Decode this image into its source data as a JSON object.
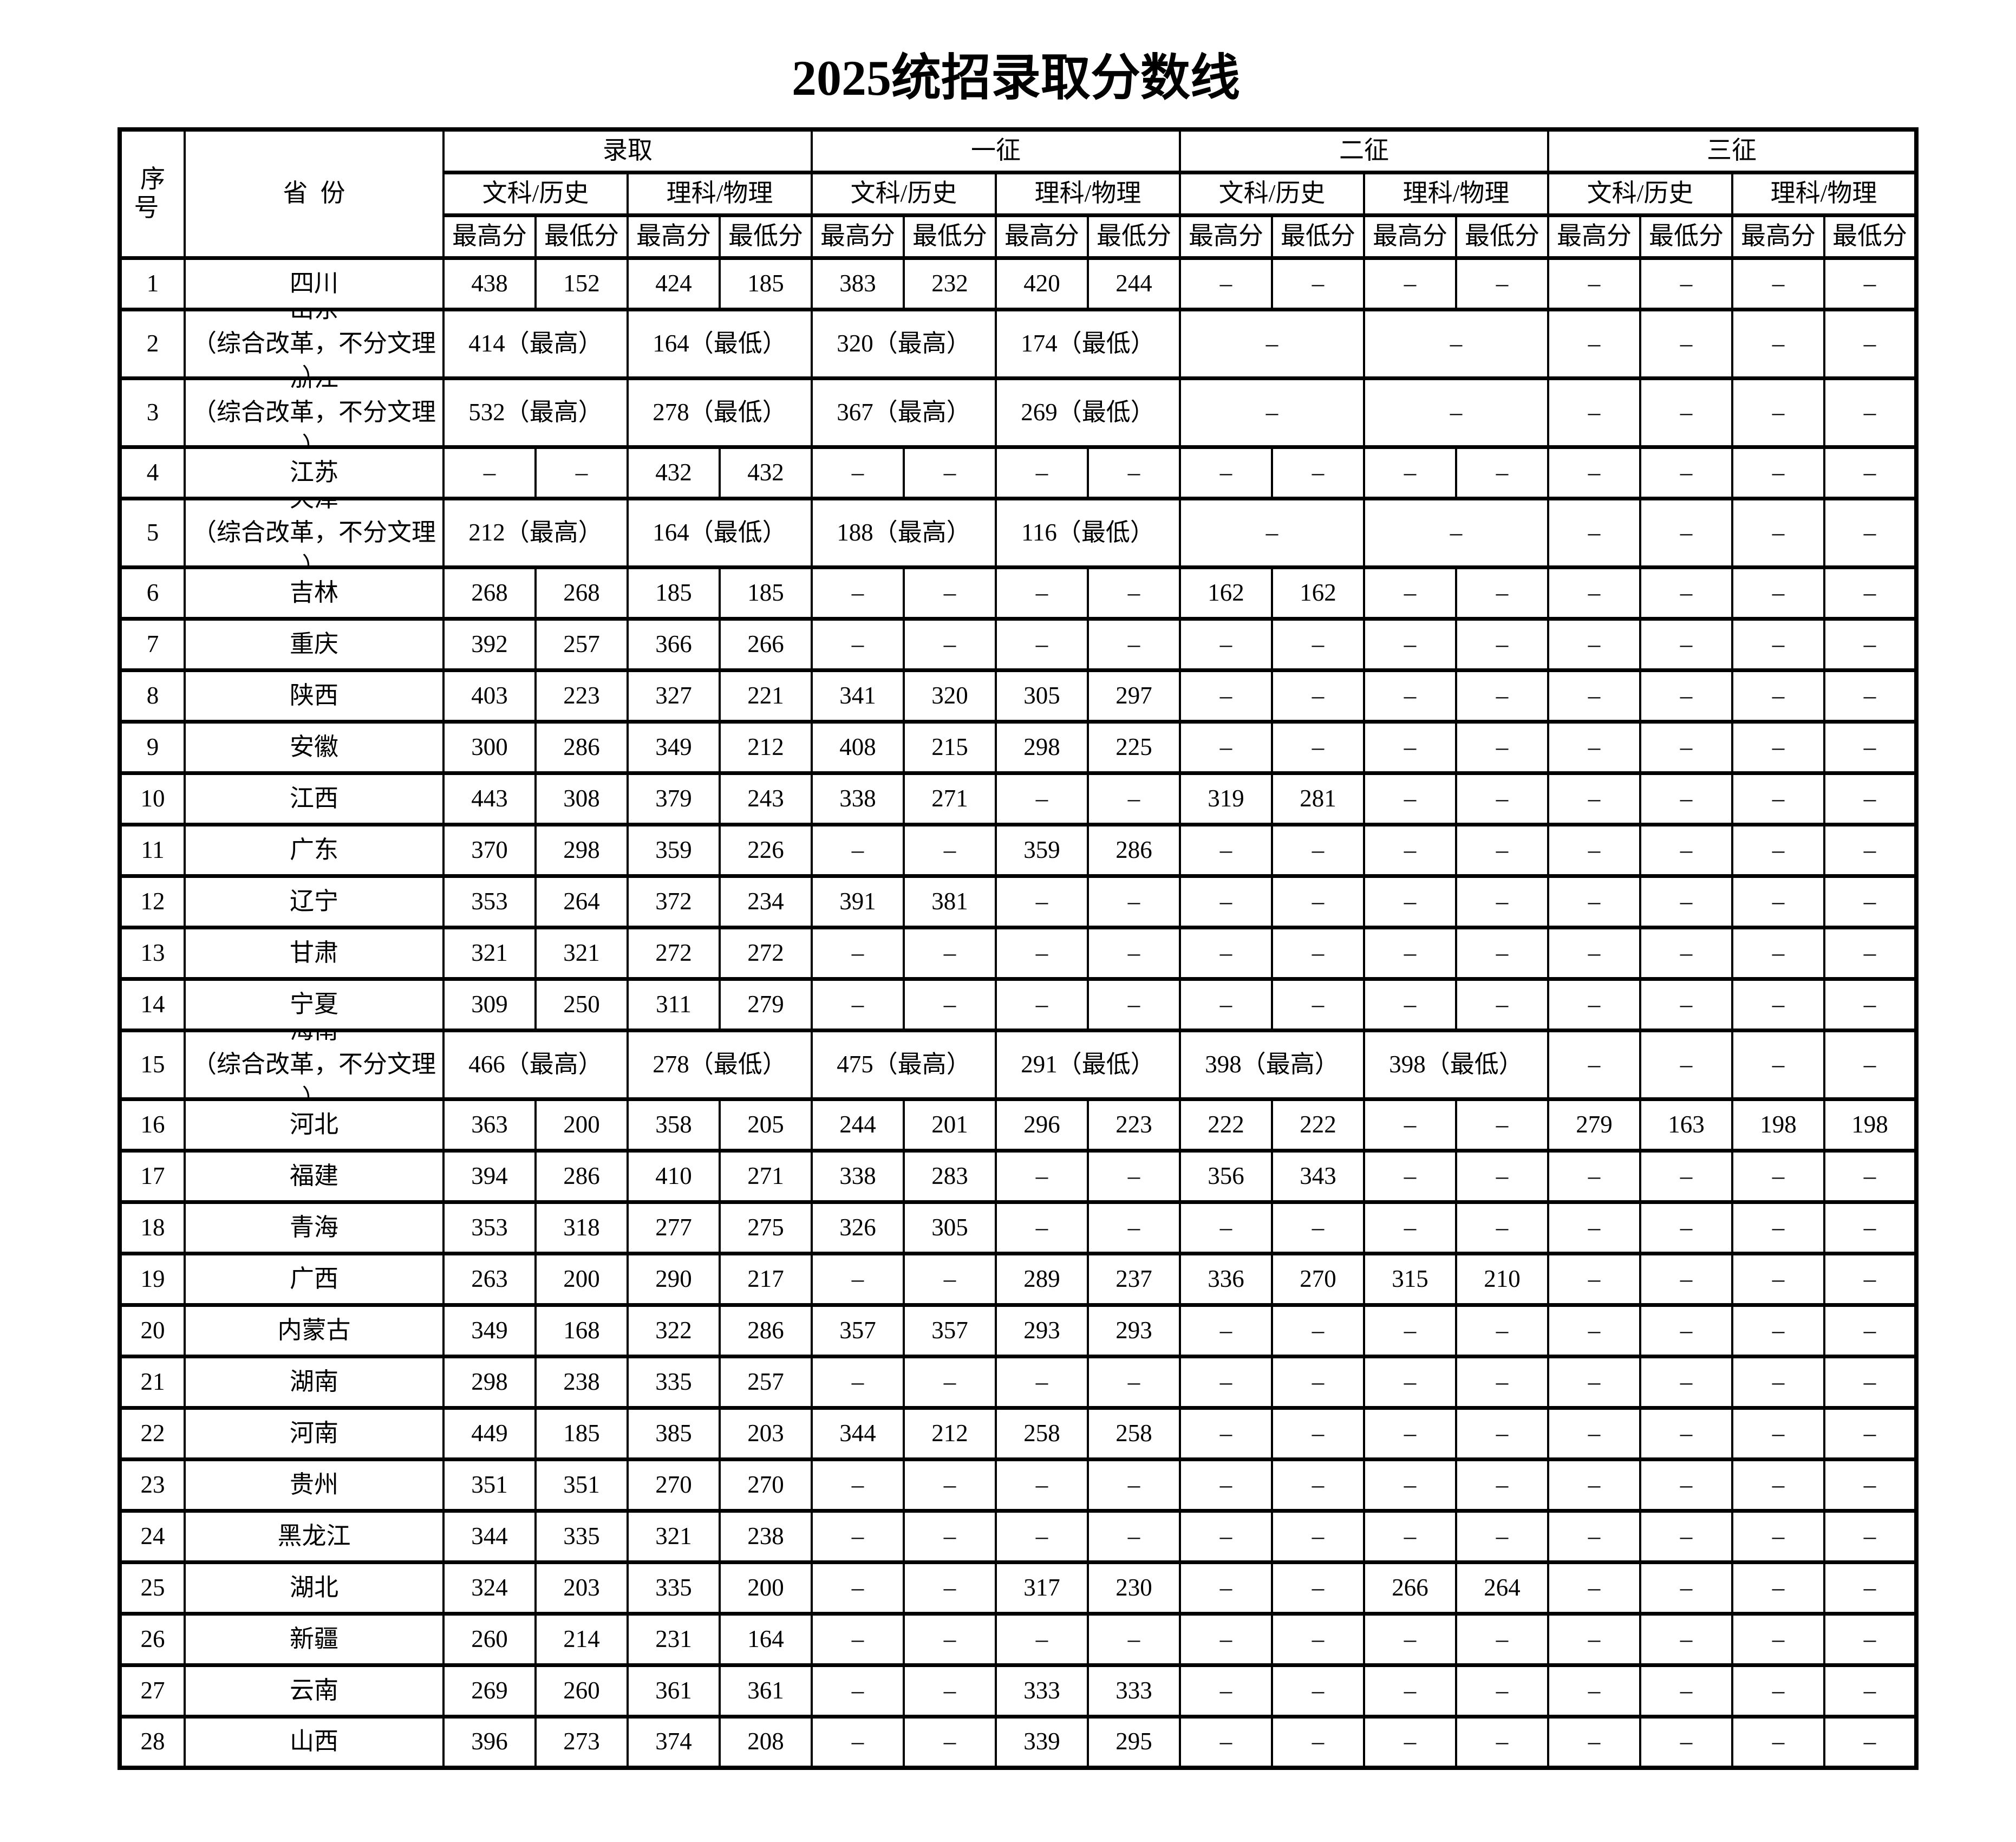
{
  "title": "2025统招录取分数线",
  "table": {
    "headers": {
      "seq": "序号",
      "province": "省份",
      "groups": [
        "录取",
        "一征",
        "二征",
        "三征"
      ],
      "subject_arts": "文科/历史",
      "subject_science": "理科/物理",
      "max": "最高分",
      "min": "最低分"
    },
    "dash": "–",
    "rows": [
      {
        "seq": "1",
        "province": "四川",
        "values": [
          "438",
          "152",
          "424",
          "185",
          "383",
          "232",
          "420",
          "244",
          "–",
          "–",
          "–",
          "–",
          "–",
          "–",
          "–",
          "–"
        ]
      },
      {
        "seq": "2",
        "province": [
          "山东",
          "（综合改革，不分文理",
          "）"
        ],
        "merged": [
          "414（最高）",
          "164（最低）",
          "320（最高）",
          "174（最低）",
          "–",
          "–"
        ],
        "tail": [
          "–",
          "–",
          "–",
          "–"
        ]
      },
      {
        "seq": "3",
        "province": [
          "浙江",
          "（综合改革，不分文理",
          "）"
        ],
        "merged": [
          "532（最高）",
          "278（最低）",
          "367（最高）",
          "269（最低）",
          "–",
          "–"
        ],
        "tail": [
          "–",
          "–",
          "–",
          "–"
        ]
      },
      {
        "seq": "4",
        "province": "江苏",
        "values": [
          "–",
          "–",
          "432",
          "432",
          "–",
          "–",
          "–",
          "–",
          "–",
          "–",
          "–",
          "–",
          "–",
          "–",
          "–",
          "–"
        ]
      },
      {
        "seq": "5",
        "province": [
          "天津",
          "（综合改革，不分文理",
          "）"
        ],
        "merged": [
          "212（最高）",
          "164（最低）",
          "188（最高）",
          "116（最低）",
          "–",
          "–"
        ],
        "tail": [
          "–",
          "–",
          "–",
          "–"
        ]
      },
      {
        "seq": "6",
        "province": "吉林",
        "values": [
          "268",
          "268",
          "185",
          "185",
          "–",
          "–",
          "–",
          "–",
          "162",
          "162",
          "–",
          "–",
          "–",
          "–",
          "–",
          "–"
        ]
      },
      {
        "seq": "7",
        "province": "重庆",
        "values": [
          "392",
          "257",
          "366",
          "266",
          "–",
          "–",
          "–",
          "–",
          "–",
          "–",
          "–",
          "–",
          "–",
          "–",
          "–",
          "–"
        ]
      },
      {
        "seq": "8",
        "province": "陕西",
        "values": [
          "403",
          "223",
          "327",
          "221",
          "341",
          "320",
          "305",
          "297",
          "–",
          "–",
          "–",
          "–",
          "–",
          "–",
          "–",
          "–"
        ]
      },
      {
        "seq": "9",
        "province": "安徽",
        "values": [
          "300",
          "286",
          "349",
          "212",
          "408",
          "215",
          "298",
          "225",
          "–",
          "–",
          "–",
          "–",
          "–",
          "–",
          "–",
          "–"
        ]
      },
      {
        "seq": "10",
        "province": "江西",
        "values": [
          "443",
          "308",
          "379",
          "243",
          "338",
          "271",
          "–",
          "–",
          "319",
          "281",
          "–",
          "–",
          "–",
          "–",
          "–",
          "–"
        ]
      },
      {
        "seq": "11",
        "province": "广东",
        "values": [
          "370",
          "298",
          "359",
          "226",
          "–",
          "–",
          "359",
          "286",
          "–",
          "–",
          "–",
          "–",
          "–",
          "–",
          "–",
          "–"
        ]
      },
      {
        "seq": "12",
        "province": "辽宁",
        "values": [
          "353",
          "264",
          "372",
          "234",
          "391",
          "381",
          "–",
          "–",
          "–",
          "–",
          "–",
          "–",
          "–",
          "–",
          "–",
          "–"
        ]
      },
      {
        "seq": "13",
        "province": "甘肃",
        "values": [
          "321",
          "321",
          "272",
          "272",
          "–",
          "–",
          "–",
          "–",
          "–",
          "–",
          "–",
          "–",
          "–",
          "–",
          "–",
          "–"
        ]
      },
      {
        "seq": "14",
        "province": "宁夏",
        "values": [
          "309",
          "250",
          "311",
          "279",
          "–",
          "–",
          "–",
          "–",
          "–",
          "–",
          "–",
          "–",
          "–",
          "–",
          "–",
          "–"
        ]
      },
      {
        "seq": "15",
        "province": [
          "海南",
          "（综合改革，不分文理",
          "）"
        ],
        "merged": [
          "466（最高）",
          "278（最低）",
          "475（最高）",
          "291（最低）",
          "398（最高）",
          "398（最低）"
        ],
        "tail": [
          "–",
          "–",
          "–",
          "–"
        ]
      },
      {
        "seq": "16",
        "province": "河北",
        "values": [
          "363",
          "200",
          "358",
          "205",
          "244",
          "201",
          "296",
          "223",
          "222",
          "222",
          "–",
          "–",
          "279",
          "163",
          "198",
          "198"
        ]
      },
      {
        "seq": "17",
        "province": "福建",
        "values": [
          "394",
          "286",
          "410",
          "271",
          "338",
          "283",
          "–",
          "–",
          "356",
          "343",
          "–",
          "–",
          "–",
          "–",
          "–",
          "–"
        ]
      },
      {
        "seq": "18",
        "province": "青海",
        "values": [
          "353",
          "318",
          "277",
          "275",
          "326",
          "305",
          "–",
          "–",
          "–",
          "–",
          "–",
          "–",
          "–",
          "–",
          "–",
          "–"
        ]
      },
      {
        "seq": "19",
        "province": "广西",
        "values": [
          "263",
          "200",
          "290",
          "217",
          "–",
          "–",
          "289",
          "237",
          "336",
          "270",
          "315",
          "210",
          "–",
          "–",
          "–",
          "–"
        ]
      },
      {
        "seq": "20",
        "province": "内蒙古",
        "values": [
          "349",
          "168",
          "322",
          "286",
          "357",
          "357",
          "293",
          "293",
          "–",
          "–",
          "–",
          "–",
          "–",
          "–",
          "–",
          "–"
        ]
      },
      {
        "seq": "21",
        "province": "湖南",
        "values": [
          "298",
          "238",
          "335",
          "257",
          "–",
          "–",
          "–",
          "–",
          "–",
          "–",
          "–",
          "–",
          "–",
          "–",
          "–",
          "–"
        ]
      },
      {
        "seq": "22",
        "province": "河南",
        "values": [
          "449",
          "185",
          "385",
          "203",
          "344",
          "212",
          "258",
          "258",
          "–",
          "–",
          "–",
          "–",
          "–",
          "–",
          "–",
          "–"
        ]
      },
      {
        "seq": "23",
        "province": "贵州",
        "values": [
          "351",
          "351",
          "270",
          "270",
          "–",
          "–",
          "–",
          "–",
          "–",
          "–",
          "–",
          "–",
          "–",
          "–",
          "–",
          "–"
        ]
      },
      {
        "seq": "24",
        "province": "黑龙江",
        "values": [
          "344",
          "335",
          "321",
          "238",
          "–",
          "–",
          "–",
          "–",
          "–",
          "–",
          "–",
          "–",
          "–",
          "–",
          "–",
          "–"
        ]
      },
      {
        "seq": "25",
        "province": "湖北",
        "values": [
          "324",
          "203",
          "335",
          "200",
          "–",
          "–",
          "317",
          "230",
          "–",
          "–",
          "266",
          "264",
          "–",
          "–",
          "–",
          "–"
        ]
      },
      {
        "seq": "26",
        "province": "新疆",
        "values": [
          "260",
          "214",
          "231",
          "164",
          "–",
          "–",
          "–",
          "–",
          "–",
          "–",
          "–",
          "–",
          "–",
          "–",
          "–",
          "–"
        ]
      },
      {
        "seq": "27",
        "province": "云南",
        "values": [
          "269",
          "260",
          "361",
          "361",
          "–",
          "–",
          "333",
          "333",
          "–",
          "–",
          "–",
          "–",
          "–",
          "–",
          "–",
          "–"
        ]
      },
      {
        "seq": "28",
        "province": "山西",
        "values": [
          "396",
          "273",
          "374",
          "208",
          "–",
          "–",
          "339",
          "295",
          "–",
          "–",
          "–",
          "–",
          "–",
          "–",
          "–",
          "–"
        ]
      }
    ]
  }
}
